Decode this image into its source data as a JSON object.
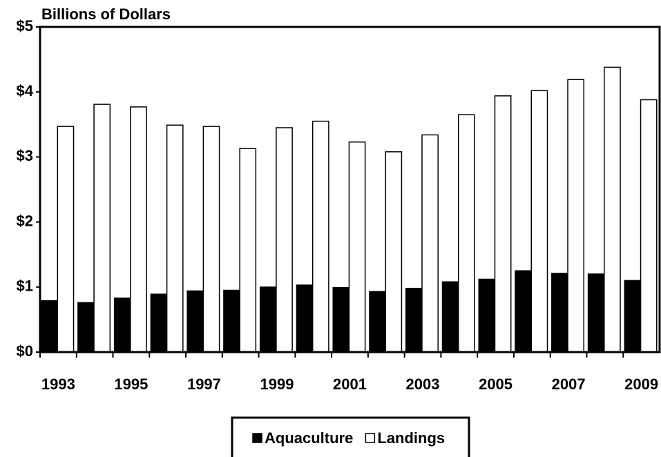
{
  "chart_data": {
    "type": "bar",
    "title": "Billions of Dollars",
    "categories": [
      "1993",
      null,
      "1995",
      null,
      "1997",
      null,
      "1999",
      null,
      "2001",
      null,
      "2003",
      null,
      "2005",
      null,
      "2007",
      null,
      "2009"
    ],
    "series": [
      {
        "name": "Aquaculture",
        "color": "#000000",
        "values": [
          0.79,
          0.76,
          0.83,
          0.89,
          0.94,
          0.95,
          1.0,
          1.03,
          0.99,
          0.93,
          0.98,
          1.08,
          1.12,
          1.25,
          1.21,
          1.2,
          1.1
        ]
      },
      {
        "name": "Landings",
        "color": "#ffffff",
        "values": [
          3.47,
          3.81,
          3.77,
          3.49,
          3.47,
          3.13,
          3.45,
          3.55,
          3.23,
          3.08,
          3.34,
          3.65,
          3.94,
          4.02,
          4.19,
          4.38,
          3.88
        ]
      }
    ],
    "ylim": [
      0,
      5
    ],
    "yticks": [
      {
        "value": 0,
        "label": "$0"
      },
      {
        "value": 1,
        "label": "$1"
      },
      {
        "value": 2,
        "label": "$2"
      },
      {
        "value": 3,
        "label": "$3"
      },
      {
        "value": 4,
        "label": "$4"
      },
      {
        "value": 5,
        "label": "$5"
      }
    ],
    "grid": false,
    "legend": "bottom"
  }
}
